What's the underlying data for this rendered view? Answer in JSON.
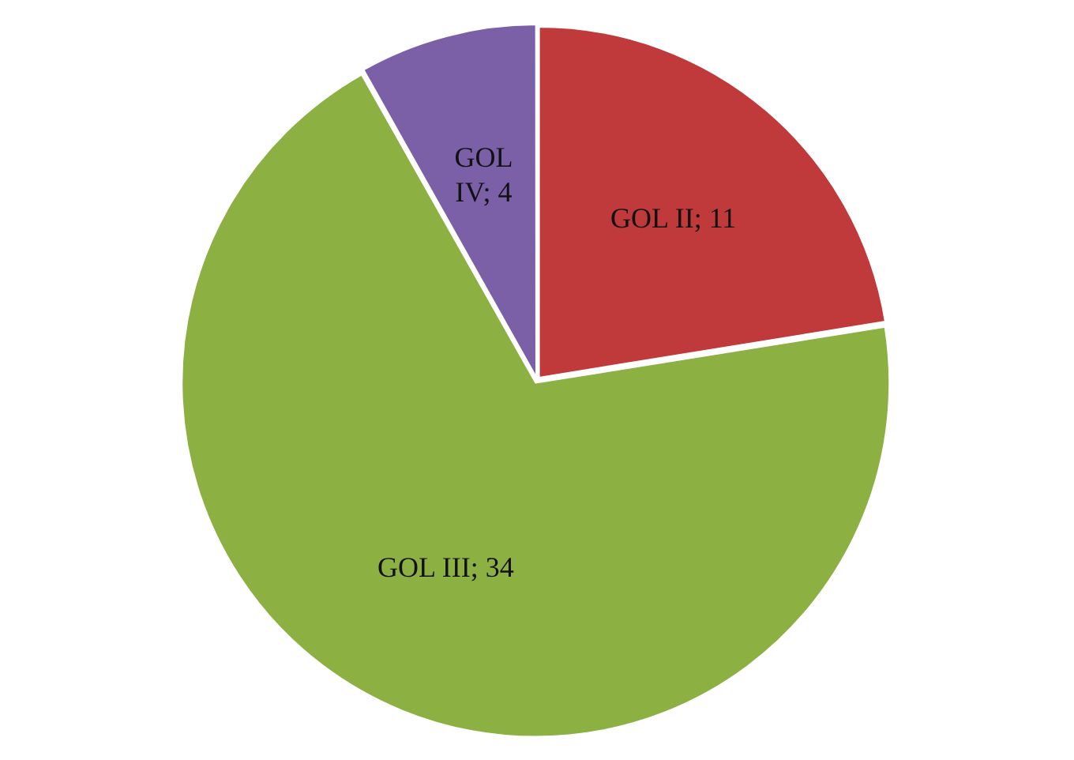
{
  "chart_data": {
    "type": "pie",
    "categories": [
      "GOL II; 11",
      "GOL III; 34",
      "GOL IV; 4"
    ],
    "values": [
      11,
      34,
      4
    ],
    "colors": [
      "#c0393b",
      "#8db043",
      "#7b60a8"
    ],
    "legend": false
  }
}
